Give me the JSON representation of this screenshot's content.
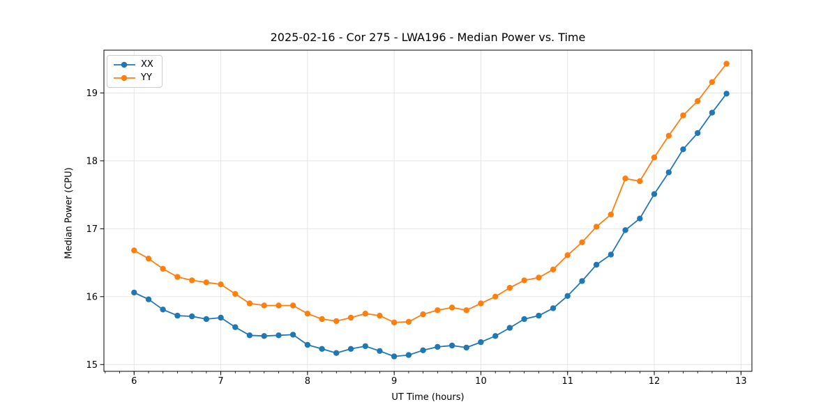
{
  "chart_data": {
    "type": "line",
    "title": "2025-02-16 - Cor 275 - LWA196 - Median Power vs. Time",
    "xlabel": "UT Time (hours)",
    "ylabel": "Median Power (CPU)",
    "xlim": [
      5.652,
      13.126
    ],
    "ylim": [
      14.9,
      19.63
    ],
    "xticks": [
      6,
      7,
      8,
      9,
      10,
      11,
      12,
      13
    ],
    "yticks": [
      15,
      16,
      17,
      18,
      19
    ],
    "x_minor_step": 0.16667,
    "grid": true,
    "grid_color": "#e3e3e3",
    "legend_position": "upper left",
    "x": [
      6.0,
      6.167,
      6.333,
      6.5,
      6.667,
      6.833,
      7.0,
      7.167,
      7.333,
      7.5,
      7.667,
      7.833,
      8.0,
      8.167,
      8.333,
      8.5,
      8.667,
      8.833,
      9.0,
      9.167,
      9.333,
      9.5,
      9.667,
      9.833,
      10.0,
      10.167,
      10.333,
      10.5,
      10.667,
      10.833,
      11.0,
      11.167,
      11.333,
      11.5,
      11.667,
      11.833,
      12.0,
      12.167,
      12.333,
      12.5,
      12.667,
      12.833
    ],
    "series": [
      {
        "name": "XX",
        "color": "#1f77b4",
        "values": [
          16.06,
          15.96,
          15.81,
          15.72,
          15.71,
          15.67,
          15.69,
          15.55,
          15.43,
          15.42,
          15.43,
          15.44,
          15.29,
          15.23,
          15.17,
          15.23,
          15.27,
          15.2,
          15.12,
          15.14,
          15.21,
          15.26,
          15.28,
          15.25,
          15.33,
          15.42,
          15.54,
          15.67,
          15.72,
          15.83,
          16.01,
          16.23,
          16.47,
          16.62,
          16.98,
          17.15,
          17.51,
          17.83,
          18.17,
          18.41,
          18.71,
          18.99
        ]
      },
      {
        "name": "YY",
        "color": "#ff7f0e",
        "values": [
          16.68,
          16.56,
          16.41,
          16.29,
          16.24,
          16.21,
          16.18,
          16.04,
          15.9,
          15.87,
          15.87,
          15.87,
          15.75,
          15.67,
          15.64,
          15.69,
          15.75,
          15.72,
          15.62,
          15.63,
          15.74,
          15.8,
          15.84,
          15.8,
          15.9,
          16.0,
          16.13,
          16.24,
          16.28,
          16.4,
          16.61,
          16.8,
          17.03,
          17.21,
          17.74,
          17.7,
          18.05,
          18.37,
          18.67,
          18.88,
          19.16,
          19.43
        ]
      }
    ]
  }
}
